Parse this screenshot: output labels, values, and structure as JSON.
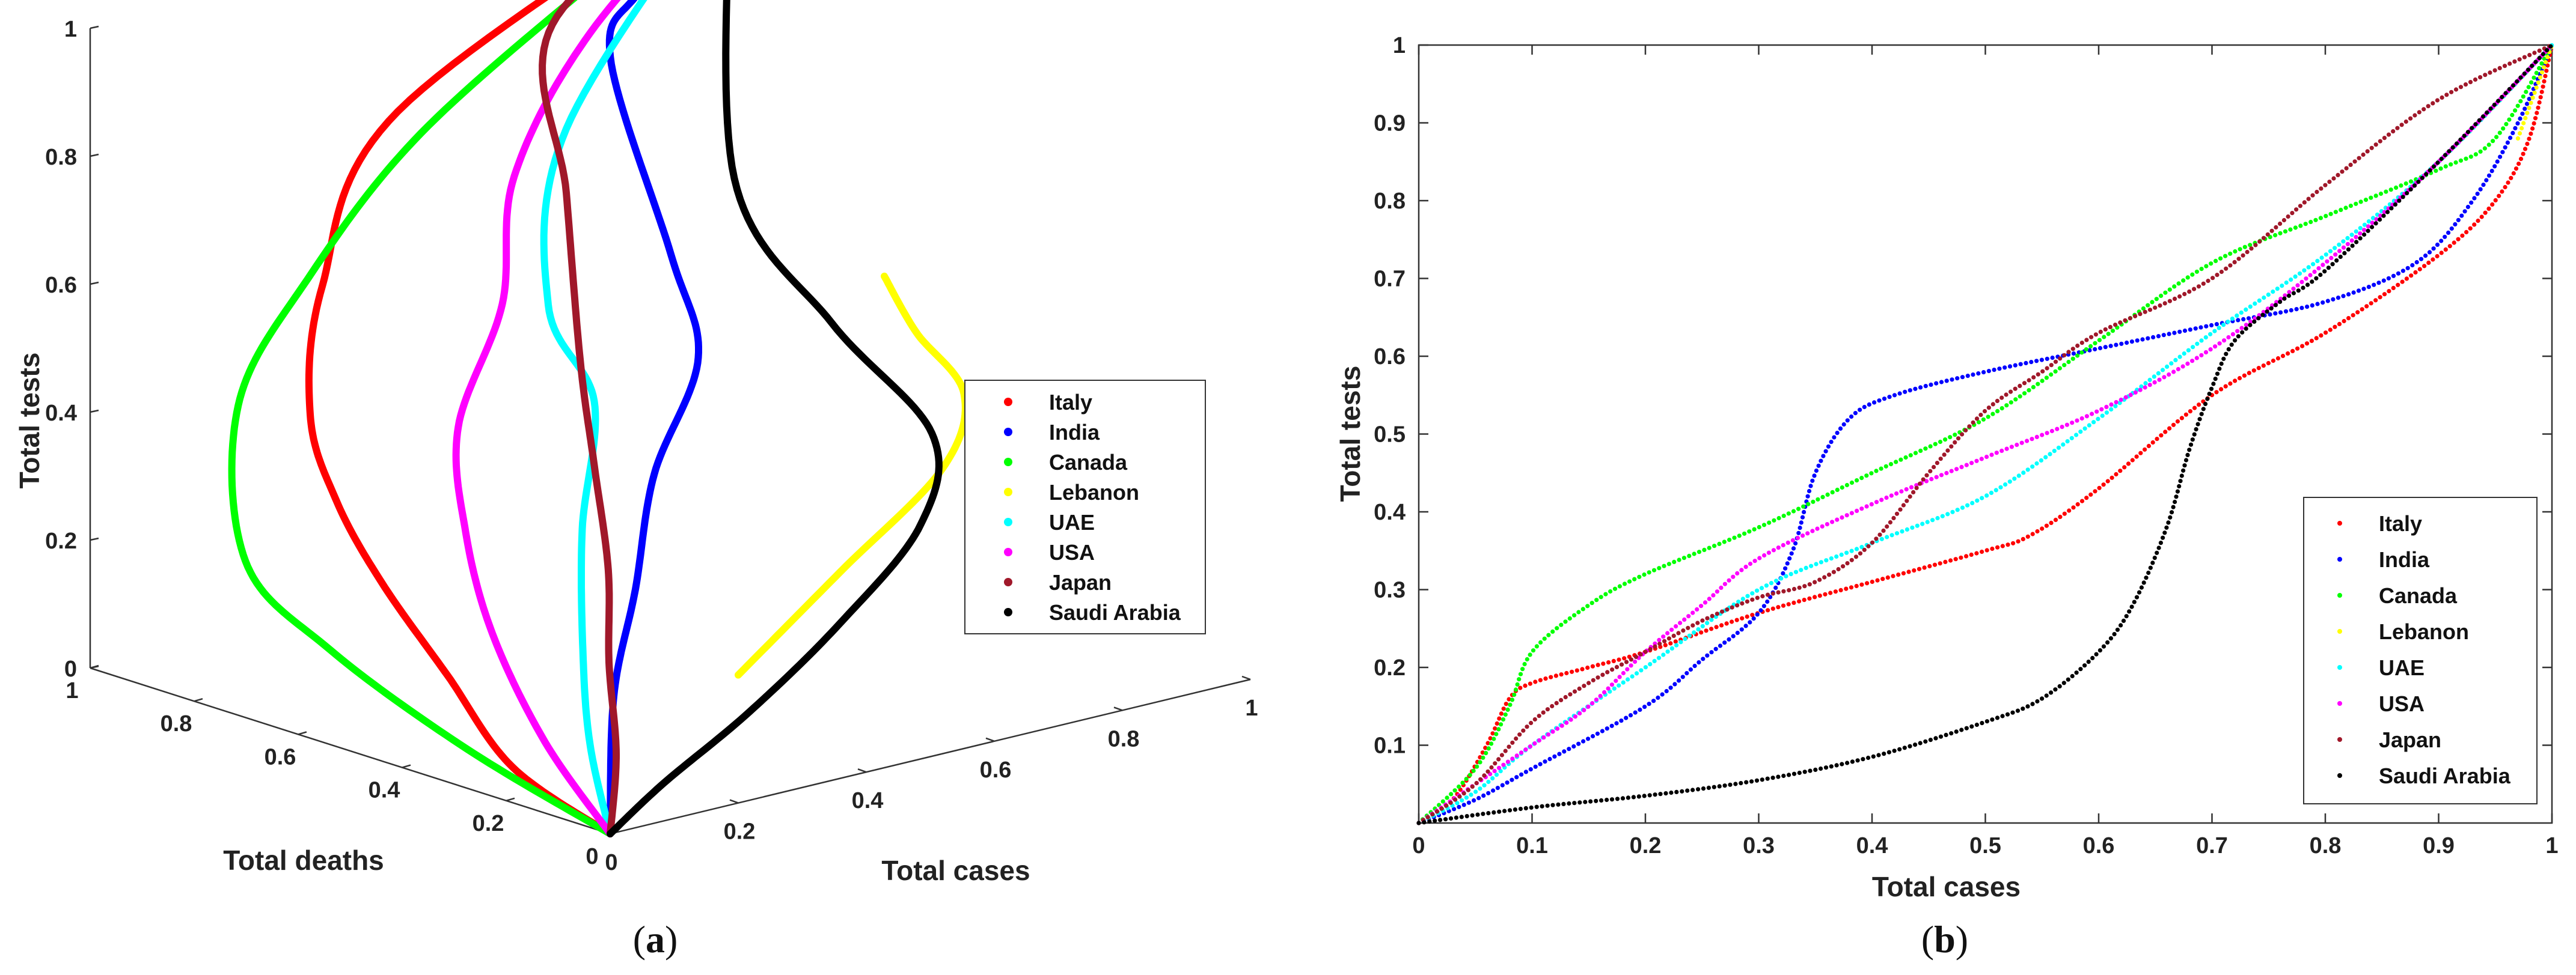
{
  "chart_data": [
    {
      "panel": "(a)",
      "panel_letter": "a",
      "type": "line",
      "projection": "3d",
      "xlabel": "Total cases",
      "ylabel": "Total deaths",
      "zlabel": "Total tests",
      "xlim": [
        0,
        1
      ],
      "ylim": [
        0,
        1
      ],
      "zlim": [
        0,
        1
      ],
      "x_ticks": [
        "0",
        "0.2",
        "0.4",
        "0.6",
        "0.8",
        "1"
      ],
      "y_ticks": [
        "0",
        "0.2",
        "0.4",
        "0.6",
        "0.8",
        "1"
      ],
      "z_ticks": [
        "0",
        "0.2",
        "0.4",
        "0.6",
        "0.8",
        "1"
      ],
      "legend_position": "right",
      "series": [
        {
          "name": "Italy",
          "color": "#ff0000",
          "points": [
            [
              0,
              0,
              0
            ],
            [
              0.01,
              0.2,
              0.05
            ],
            [
              0.03,
              0.35,
              0.15
            ],
            [
              0.05,
              0.5,
              0.25
            ],
            [
              0.06,
              0.6,
              0.35
            ],
            [
              0.1,
              0.7,
              0.45
            ],
            [
              0.2,
              0.8,
              0.6
            ],
            [
              0.4,
              0.9,
              0.8
            ],
            [
              1,
              1,
              1
            ]
          ]
        },
        {
          "name": "India",
          "color": "#0000ff",
          "points": [
            [
              0,
              0,
              0
            ],
            [
              0.03,
              0.03,
              0.2
            ],
            [
              0.08,
              0.05,
              0.35
            ],
            [
              0.15,
              0.1,
              0.5
            ],
            [
              0.3,
              0.2,
              0.62
            ],
            [
              0.42,
              0.4,
              0.7
            ],
            [
              0.65,
              0.8,
              0.85
            ],
            [
              0.78,
              0.9,
              0.9
            ],
            [
              1,
              1,
              1
            ]
          ]
        },
        {
          "name": "Canada",
          "color": "#00ff00",
          "points": [
            [
              0,
              0,
              0
            ],
            [
              0.02,
              0.3,
              0.05
            ],
            [
              0.05,
              0.6,
              0.12
            ],
            [
              0.08,
              0.8,
              0.2
            ],
            [
              0.15,
              0.9,
              0.4
            ],
            [
              0.3,
              0.95,
              0.55
            ],
            [
              0.5,
              0.98,
              0.72
            ],
            [
              0.8,
              0.99,
              0.9
            ],
            [
              1,
              1,
              1
            ]
          ]
        },
        {
          "name": "Lebanon",
          "color": "#ffff00",
          "points": [
            [
              0.2,
              0,
              0.2
            ],
            [
              0.4,
              0.05,
              0.3
            ],
            [
              0.6,
              0.1,
              0.4
            ],
            [
              0.65,
              0.12,
              0.5
            ],
            [
              0.6,
              0.15,
              0.6
            ],
            [
              0.55,
              0.15,
              0.7
            ]
          ]
        },
        {
          "name": "UAE",
          "color": "#00ffff",
          "points": [
            [
              0,
              0,
              0
            ],
            [
              0.05,
              0.1,
              0.1
            ],
            [
              0.12,
              0.2,
              0.2
            ],
            [
              0.2,
              0.3,
              0.35
            ],
            [
              0.3,
              0.4,
              0.5
            ],
            [
              0.35,
              0.55,
              0.6
            ],
            [
              0.5,
              0.7,
              0.8
            ],
            [
              1,
              1,
              1
            ]
          ]
        },
        {
          "name": "USA",
          "color": "#ff00ff",
          "points": [
            [
              0,
              0,
              0
            ],
            [
              0.02,
              0.15,
              0.1
            ],
            [
              0.06,
              0.3,
              0.22
            ],
            [
              0.14,
              0.45,
              0.32
            ],
            [
              0.25,
              0.6,
              0.42
            ],
            [
              0.4,
              0.7,
              0.55
            ],
            [
              0.5,
              0.8,
              0.7
            ],
            [
              0.7,
              0.9,
              0.85
            ],
            [
              1,
              1,
              1
            ]
          ]
        },
        {
          "name": "Japan",
          "color": "#a0182a",
          "points": [
            [
              0,
              0,
              0
            ],
            [
              0.05,
              0.05,
              0.1
            ],
            [
              0.12,
              0.15,
              0.2
            ],
            [
              0.2,
              0.25,
              0.3
            ],
            [
              0.3,
              0.4,
              0.4
            ],
            [
              0.4,
              0.55,
              0.5
            ],
            [
              0.5,
              0.7,
              0.7
            ],
            [
              0.6,
              0.85,
              0.9
            ],
            [
              1,
              1,
              1
            ]
          ]
        },
        {
          "name": "Saudi Arabia",
          "color": "#000000",
          "points": [
            [
              0,
              0,
              0
            ],
            [
              0.1,
              0.02,
              0.05
            ],
            [
              0.25,
              0.04,
              0.12
            ],
            [
              0.4,
              0.05,
              0.22
            ],
            [
              0.55,
              0.08,
              0.33
            ],
            [
              0.6,
              0.12,
              0.45
            ],
            [
              0.55,
              0.25,
              0.6
            ],
            [
              0.6,
              0.5,
              0.75
            ],
            [
              1,
              1,
              1
            ]
          ]
        }
      ]
    },
    {
      "panel": "(b)",
      "panel_letter": "b",
      "type": "scatter",
      "xlabel": "Total cases",
      "ylabel": "Total tests",
      "xlim": [
        0,
        1
      ],
      "ylim": [
        0,
        1
      ],
      "x_ticks": [
        "0",
        "0.1",
        "0.2",
        "0.3",
        "0.4",
        "0.5",
        "0.6",
        "0.7",
        "0.8",
        "0.9",
        "1"
      ],
      "y_ticks": [
        "0.1",
        "0.2",
        "0.3",
        "0.4",
        "0.5",
        "0.6",
        "0.7",
        "0.8",
        "0.9",
        "1"
      ],
      "legend_position": "bottom-right",
      "series": [
        {
          "name": "Italy",
          "color": "#ff0000",
          "x": [
            0,
            0.03,
            0.06,
            0.08,
            0.1,
            0.15,
            0.2,
            0.3,
            0.4,
            0.5,
            0.54,
            0.6,
            0.7,
            0.8,
            0.9,
            0.95,
            0.98,
            1
          ],
          "y": [
            0,
            0.03,
            0.1,
            0.16,
            0.18,
            0.2,
            0.22,
            0.27,
            0.31,
            0.35,
            0.37,
            0.43,
            0.55,
            0.63,
            0.73,
            0.8,
            0.88,
            1
          ]
        },
        {
          "name": "India",
          "color": "#0000ff",
          "x": [
            0,
            0.05,
            0.1,
            0.2,
            0.25,
            0.3,
            0.33,
            0.35,
            0.38,
            0.42,
            0.5,
            0.6,
            0.7,
            0.8,
            0.88,
            0.93,
            0.97,
            1
          ],
          "y": [
            0,
            0.03,
            0.07,
            0.15,
            0.21,
            0.27,
            0.35,
            0.45,
            0.52,
            0.55,
            0.58,
            0.61,
            0.64,
            0.67,
            0.72,
            0.8,
            0.9,
            1
          ]
        },
        {
          "name": "Canada",
          "color": "#00ff00",
          "x": [
            0,
            0.05,
            0.08,
            0.1,
            0.15,
            0.2,
            0.3,
            0.4,
            0.5,
            0.6,
            0.7,
            0.8,
            0.9,
            0.95,
            1
          ],
          "y": [
            0,
            0.07,
            0.15,
            0.22,
            0.28,
            0.32,
            0.38,
            0.45,
            0.52,
            0.62,
            0.72,
            0.78,
            0.84,
            0.88,
            1
          ]
        },
        {
          "name": "Lebanon",
          "color": "#ffff00",
          "x": [
            0.97,
            0.98,
            0.99,
            1
          ],
          "y": [
            0.88,
            0.92,
            0.96,
            1
          ]
        },
        {
          "name": "UAE",
          "color": "#00ffff",
          "x": [
            0,
            0.05,
            0.1,
            0.2,
            0.3,
            0.4,
            0.5,
            0.6,
            0.7,
            0.8,
            0.9,
            1
          ],
          "y": [
            0,
            0.04,
            0.1,
            0.2,
            0.3,
            0.36,
            0.42,
            0.52,
            0.63,
            0.73,
            0.85,
            1
          ]
        },
        {
          "name": "USA",
          "color": "#ff00ff",
          "x": [
            0,
            0.05,
            0.1,
            0.15,
            0.2,
            0.25,
            0.3,
            0.4,
            0.5,
            0.6,
            0.7,
            0.8,
            0.9,
            1
          ],
          "y": [
            0,
            0.05,
            0.1,
            0.15,
            0.22,
            0.28,
            0.34,
            0.41,
            0.47,
            0.53,
            0.61,
            0.72,
            0.85,
            1
          ]
        },
        {
          "name": "Japan",
          "color": "#a0182a",
          "x": [
            0,
            0.05,
            0.1,
            0.15,
            0.2,
            0.25,
            0.3,
            0.35,
            0.4,
            0.45,
            0.5,
            0.55,
            0.6,
            0.7,
            0.8,
            0.9,
            1
          ],
          "y": [
            0,
            0.05,
            0.13,
            0.18,
            0.22,
            0.26,
            0.29,
            0.31,
            0.36,
            0.45,
            0.53,
            0.58,
            0.63,
            0.7,
            0.82,
            0.93,
            1
          ]
        },
        {
          "name": "Saudi Arabia",
          "color": "#000000",
          "x": [
            0,
            0.1,
            0.2,
            0.3,
            0.4,
            0.5,
            0.55,
            0.6,
            0.63,
            0.66,
            0.68,
            0.7,
            0.72,
            0.76,
            0.8,
            0.9,
            1
          ],
          "y": [
            0,
            0.02,
            0.035,
            0.055,
            0.085,
            0.13,
            0.16,
            0.22,
            0.28,
            0.38,
            0.48,
            0.56,
            0.62,
            0.67,
            0.71,
            0.85,
            1
          ]
        }
      ]
    }
  ]
}
